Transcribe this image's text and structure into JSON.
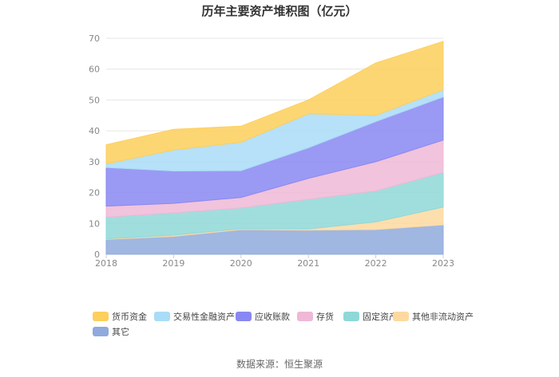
{
  "chart_data": {
    "type": "area",
    "stacked": true,
    "title": "历年主要资产堆积图（亿元）",
    "x": [
      "2018",
      "2019",
      "2020",
      "2021",
      "2022",
      "2023"
    ],
    "ylim": [
      0,
      70
    ],
    "yticks": [
      "0",
      "10",
      "20",
      "30",
      "40",
      "50",
      "60",
      "70"
    ],
    "series": [
      {
        "name": "其它",
        "color": "#8faadc",
        "values": [
          4.8,
          5.8,
          8.0,
          7.8,
          8.0,
          9.5
        ]
      },
      {
        "name": "其他非流动资产",
        "color": "#fdd9a0",
        "values": [
          0.2,
          0.4,
          0.3,
          0.4,
          2.5,
          5.8
        ]
      },
      {
        "name": "固定资产",
        "color": "#8fd8d8",
        "values": [
          7.0,
          7.2,
          6.7,
          9.6,
          10.0,
          11.2
        ]
      },
      {
        "name": "存货",
        "color": "#efb8d6",
        "values": [
          3.6,
          3.1,
          3.4,
          6.8,
          9.5,
          10.5
        ]
      },
      {
        "name": "应收账款",
        "color": "#8888f2",
        "values": [
          12.5,
          10.5,
          8.7,
          9.9,
          13.0,
          14.0
        ]
      },
      {
        "name": "交易性金融资产",
        "color": "#a9dcf7",
        "values": [
          1.2,
          6.8,
          9.2,
          11.0,
          2.0,
          2.3
        ]
      },
      {
        "name": "货币资金",
        "color": "#fdcf5c",
        "values": [
          6.2,
          6.7,
          5.2,
          4.5,
          17.0,
          15.7
        ]
      }
    ],
    "legend_order": [
      "货币资金",
      "交易性金融资产",
      "应收账款",
      "存货",
      "固定资产",
      "其他非流动资产",
      "其它"
    ],
    "legend_position": "bottom",
    "grid": true
  },
  "source": "数据来源：恒生聚源"
}
